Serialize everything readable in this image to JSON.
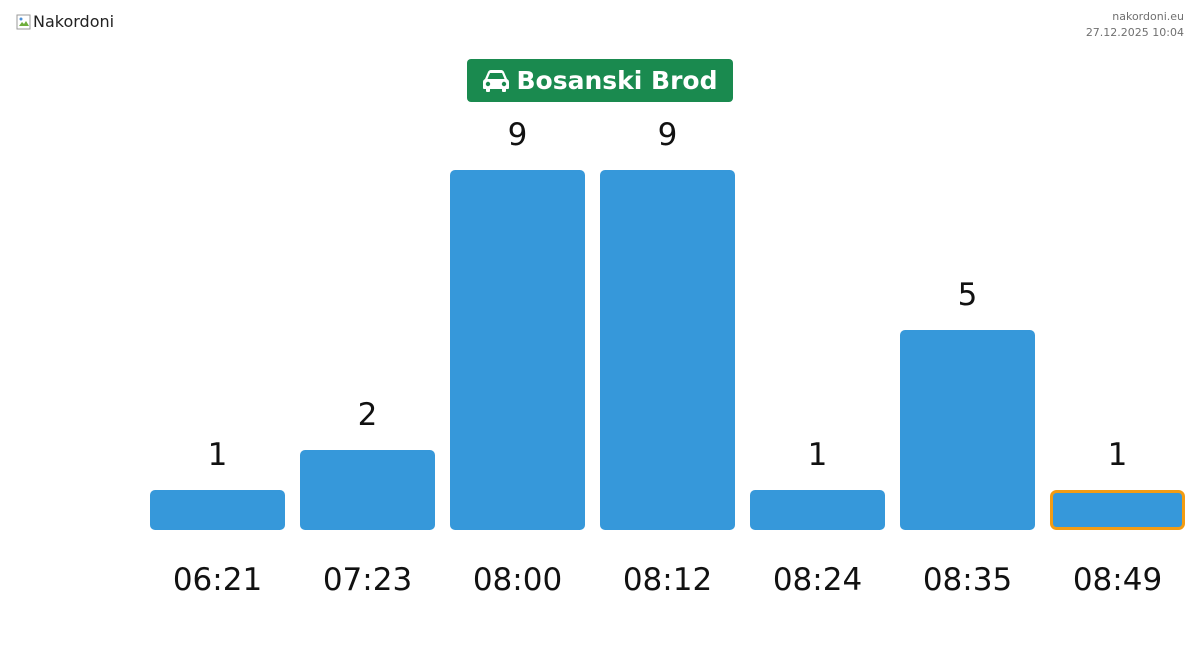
{
  "header": {
    "logo_alt": "Nakordoni",
    "site": "nakordoni.eu",
    "timestamp": "27.12.2025 10:04"
  },
  "title": {
    "icon": "car-icon",
    "text": "Bosanski Brod"
  },
  "colors": {
    "bar": "#3698da",
    "highlight_border": "#f39c12",
    "badge": "#1a8a4f"
  },
  "chart_data": {
    "type": "bar",
    "title": "Bosanski Brod",
    "categories": [
      "06:21",
      "07:23",
      "08:00",
      "08:12",
      "08:24",
      "08:35",
      "08:49"
    ],
    "values": [
      1,
      2,
      9,
      9,
      1,
      5,
      1
    ],
    "highlighted_category": "08:49",
    "xlabel": "",
    "ylabel": "",
    "ylim": [
      0,
      9
    ],
    "grid": false,
    "legend": "none"
  }
}
